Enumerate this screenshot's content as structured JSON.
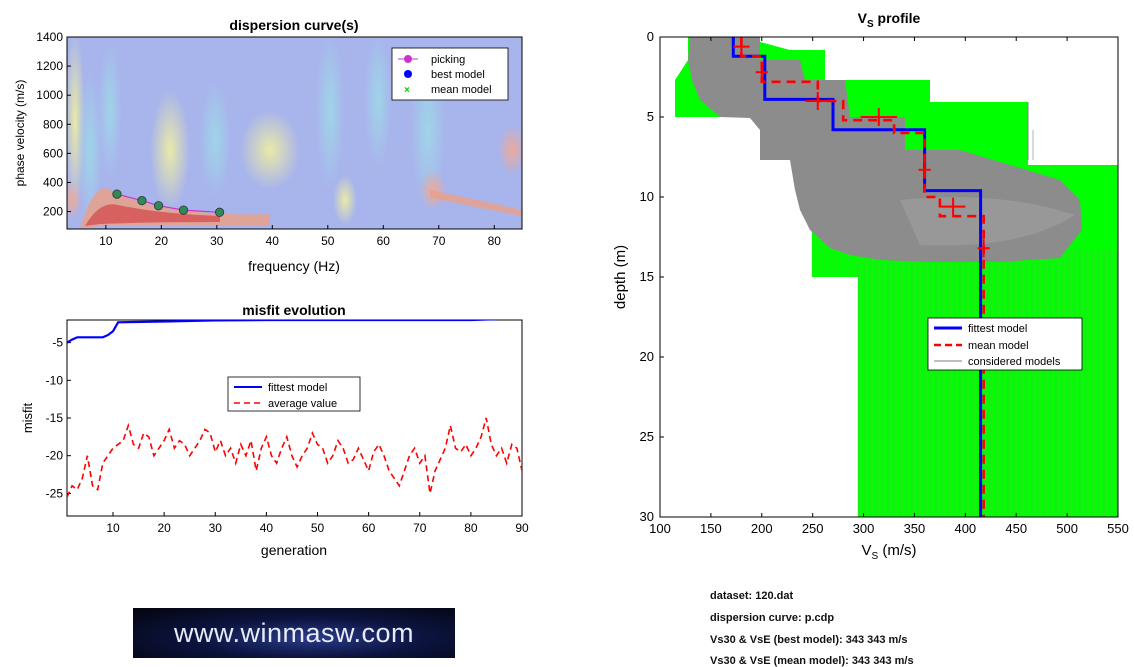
{
  "colors": {
    "best": "#0000ff",
    "mean": "#ff0000",
    "considered": "#808080",
    "envelope": "#00ff00",
    "picking": "#cc33cc"
  },
  "dispersion": {
    "title": "dispersion curve(s)",
    "xlabel": "frequency (Hz)",
    "ylabel": "phase velocity (m/s)",
    "xlim": [
      3,
      85
    ],
    "ylim": [
      80,
      1400
    ],
    "xticks": [
      10,
      20,
      30,
      40,
      50,
      60,
      70,
      80
    ],
    "yticks": [
      200,
      400,
      600,
      800,
      1000,
      1200,
      1400
    ],
    "legend": [
      "picking",
      "best model",
      "mean model"
    ],
    "curve": {
      "x": [
        12,
        16.5,
        19.5,
        24,
        30.5
      ],
      "y": [
        320,
        275,
        240,
        210,
        195
      ]
    }
  },
  "misfit": {
    "title": "misfit evolution",
    "xlabel": "generation",
    "ylabel": "misfit",
    "xlim": [
      1,
      90
    ],
    "ylim": [
      -28,
      -2
    ],
    "xticks": [
      10,
      20,
      30,
      40,
      50,
      60,
      70,
      80,
      90
    ],
    "yticks": [
      -5,
      -10,
      -15,
      -20,
      -25
    ],
    "legend": [
      "fittest model",
      "average value"
    ],
    "fittest": {
      "x": [
        1,
        2,
        3,
        8,
        9,
        10,
        11,
        20,
        30,
        40,
        50,
        60,
        70,
        80,
        85,
        86,
        90
      ],
      "y": [
        -5,
        -4.6,
        -4.3,
        -4.3,
        -4.0,
        -3.5,
        -2.3,
        -2.2,
        -2.05,
        -2.0,
        -2.0,
        -2.0,
        -2.0,
        -2.0,
        -1.9,
        -1.4,
        -1.4
      ]
    },
    "average": {
      "x": [
        1,
        2,
        3,
        4,
        5,
        6,
        7,
        8,
        9,
        10,
        11,
        12,
        13,
        14,
        15,
        16,
        17,
        18,
        19,
        20,
        21,
        22,
        23,
        24,
        25,
        26,
        27,
        28,
        29,
        30,
        31,
        32,
        33,
        34,
        35,
        36,
        37,
        38,
        39,
        40,
        41,
        42,
        43,
        44,
        45,
        46,
        47,
        48,
        49,
        50,
        51,
        52,
        53,
        54,
        55,
        56,
        57,
        58,
        59,
        60,
        61,
        62,
        63,
        64,
        65,
        66,
        67,
        68,
        69,
        70,
        71,
        72,
        73,
        74,
        75,
        76,
        77,
        78,
        79,
        80,
        81,
        82,
        83,
        84,
        85,
        86,
        87,
        88,
        89,
        90
      ],
      "y": [
        -25.5,
        -24,
        -24.5,
        -23,
        -20,
        -24,
        -24.5,
        -21,
        -20,
        -19,
        -18.5,
        -18,
        -16,
        -18.5,
        -19,
        -17,
        -17.5,
        -20,
        -19,
        -18,
        -16.5,
        -19,
        -18,
        -18.5,
        -20,
        -19,
        -18,
        -16.5,
        -17,
        -19.5,
        -18,
        -20,
        -19,
        -21,
        -18.5,
        -20,
        -18,
        -22,
        -19,
        -17.5,
        -20,
        -21,
        -19,
        -17.5,
        -20,
        -21.5,
        -20,
        -19,
        -17,
        -18.5,
        -19,
        -21,
        -20,
        -18,
        -19,
        -21,
        -20.5,
        -19,
        -20.5,
        -22,
        -19.5,
        -18.5,
        -20,
        -22,
        -23,
        -24,
        -22,
        -20,
        -19,
        -21,
        -20,
        -25,
        -22,
        -20.5,
        -19,
        -16,
        -19,
        -19.5,
        -18.5,
        -20,
        -19,
        -17.5,
        -15,
        -18.5,
        -20,
        -19,
        -21,
        -18.5,
        -19,
        -22
      ]
    }
  },
  "profile": {
    "title": "V",
    "title_sub": "S",
    "title_rest": " profile",
    "xlabel": "V",
    "xlabel_sub": "S",
    "xlabel_rest": " (m/s)",
    "ylabel": "depth (m)",
    "xlim": [
      100,
      550
    ],
    "ylim": [
      0,
      30
    ],
    "xticks": [
      100,
      150,
      200,
      250,
      300,
      350,
      400,
      450,
      500,
      550
    ],
    "yticks": [
      0,
      5,
      10,
      15,
      20,
      25,
      30
    ],
    "legend": [
      "fittest model",
      "mean model",
      "considered models"
    ],
    "best": {
      "vs": [
        172,
        203,
        270,
        360,
        415
      ],
      "depth": [
        0,
        1.2,
        3.9,
        5.8,
        9.6,
        30
      ]
    },
    "mean": {
      "vs": [
        180,
        200,
        255,
        280,
        330,
        360,
        375,
        418
      ],
      "depth": [
        0,
        1.2,
        2.8,
        4.0,
        5.2,
        6.0,
        10.0,
        11.2,
        30
      ],
      "errors": [
        {
          "depth": 0.6,
          "vs": 180,
          "dv": 8
        },
        {
          "depth": 2.2,
          "vs": 200,
          "dv": 6
        },
        {
          "depth": 4.0,
          "vs": 255,
          "dv": 12
        },
        {
          "depth": 5.0,
          "vs": 315,
          "dv": 18
        },
        {
          "depth": 8.3,
          "vs": 360,
          "dv": 6
        },
        {
          "depth": 10.6,
          "vs": 388,
          "dv": 12
        },
        {
          "depth": 13.2,
          "vs": 418,
          "dv": 6
        }
      ]
    }
  },
  "info": {
    "dataset": "dataset: 120.dat",
    "curve": "dispersion curve: p.cdp",
    "best": "Vs30 & VsE (best model): 343  343 m/s",
    "mean": "Vs30 & VsE (mean model): 343  343 m/s"
  },
  "logo": "www.winmasw.com"
}
